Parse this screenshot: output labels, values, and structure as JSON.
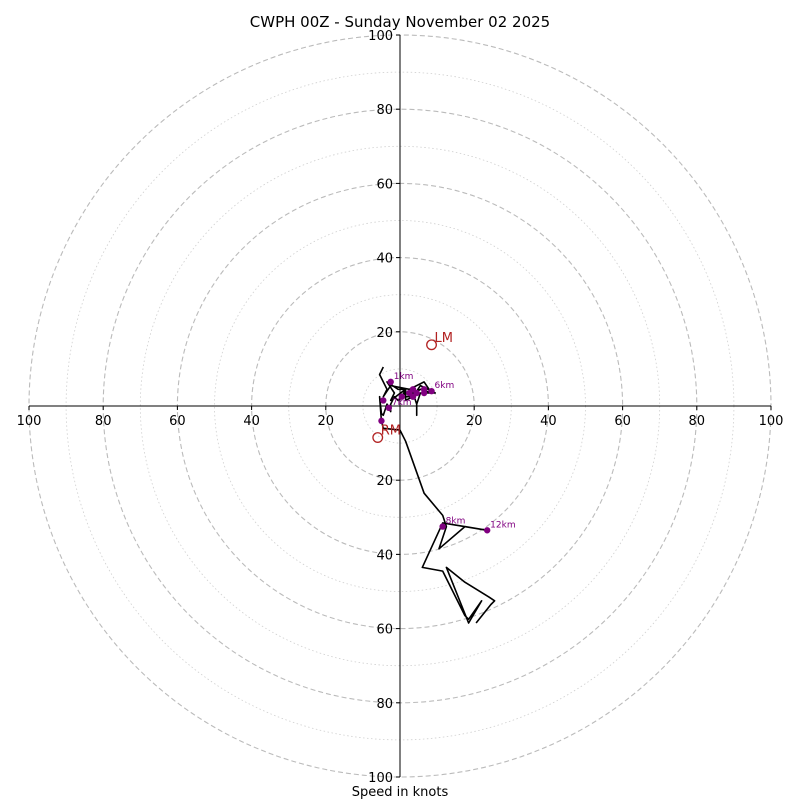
{
  "chart_data": {
    "type": "hodograph",
    "title": "CWPH 00Z - Sunday November 02 2025",
    "xlabel": "Speed in knots",
    "axis_max": 100,
    "ring_step_major": 20,
    "ring_step_minor": 10,
    "tick_labels": [
      "100",
      "80",
      "60",
      "40",
      "20",
      "20",
      "40",
      "60",
      "80",
      "100"
    ],
    "tick_values": [
      -100,
      -80,
      -60,
      -40,
      -20,
      20,
      40,
      60,
      80,
      100
    ],
    "hodograph_uv": [
      [
        -4.5,
        10.5
      ],
      [
        -5.5,
        8.5
      ],
      [
        -3.5,
        4.5
      ],
      [
        -4.5,
        2.5
      ],
      [
        -2.5,
        5.5
      ],
      [
        2.5,
        4.5
      ],
      [
        6.5,
        6.5
      ],
      [
        8.5,
        3.5
      ],
      [
        5.5,
        4.5
      ],
      [
        2.5,
        2.5
      ],
      [
        0.5,
        2.5
      ],
      [
        1.5,
        4.5
      ],
      [
        -0.5,
        4.5
      ],
      [
        -3.5,
        6.5
      ],
      [
        -1.5,
        3.5
      ],
      [
        -2.5,
        1.5
      ],
      [
        1.5,
        4.5
      ],
      [
        1.5,
        1.5
      ],
      [
        3.5,
        2.5
      ],
      [
        5.5,
        5.5
      ],
      [
        9.5,
        3.5
      ],
      [
        5.5,
        3.5
      ],
      [
        4.5,
        0.5
      ],
      [
        4.5,
        -2.5
      ],
      [
        4.5,
        0.5
      ],
      [
        3.5,
        3.5
      ],
      [
        1.5,
        3.5
      ],
      [
        -0.5,
        1.5
      ],
      [
        -1.5,
        2.5
      ],
      [
        -2.5,
        0.5
      ],
      [
        -2.5,
        -1.5
      ],
      [
        -3.5,
        0.5
      ],
      [
        -4.5,
        -2.5
      ],
      [
        -5.0,
        -2.0
      ],
      [
        -5.5,
        2.5
      ],
      [
        -5.0,
        -4.0
      ],
      [
        -4.5,
        -6.0
      ],
      [
        0,
        -6.5
      ],
      [
        1.5,
        -9.5
      ],
      [
        6.5,
        -23.5
      ],
      [
        11.5,
        -29.5
      ],
      [
        12.5,
        -32.5
      ],
      [
        10.5,
        -38.5
      ],
      [
        17.5,
        -32.5
      ],
      [
        23.5,
        -33.5
      ],
      [
        11.5,
        -31.5
      ],
      [
        6.0,
        -43.5
      ],
      [
        11.5,
        -44.5
      ],
      [
        17.5,
        -56.5
      ],
      [
        18.5,
        -57.5
      ],
      [
        22.0,
        -52.5
      ],
      [
        18.5,
        -58.5
      ],
      [
        12.5,
        -43.5
      ],
      [
        17.5,
        -47.5
      ],
      [
        24.0,
        -51.5
      ],
      [
        25.5,
        -52.5
      ],
      [
        24.5,
        -53.5
      ],
      [
        20.5,
        -58.5
      ]
    ],
    "height_markers": [
      {
        "label": "1km",
        "u": -2.5,
        "v": 6.5
      },
      {
        "label": "",
        "u": -4.5,
        "v": 1.5
      },
      {
        "label": "7km",
        "u": -3.0,
        "v": -0.5
      },
      {
        "label": "",
        "u": -5.0,
        "v": -4.0
      },
      {
        "label": "",
        "u": 2.5,
        "v": 3.5
      },
      {
        "label": "",
        "u": 3.5,
        "v": 4.5
      },
      {
        "label": "",
        "u": 4.5,
        "v": 3.5
      },
      {
        "label": "",
        "u": 6.5,
        "v": 4.5
      },
      {
        "label": "6km",
        "u": 8.5,
        "v": 4.0
      },
      {
        "label": "",
        "u": 6.5,
        "v": 3.5
      },
      {
        "label": "",
        "u": 3.5,
        "v": 2.5
      },
      {
        "label": "",
        "u": 0.5,
        "v": 2.5
      },
      {
        "label": "8km",
        "u": 11.5,
        "v": -32.5
      },
      {
        "label": "12km",
        "u": 23.5,
        "v": -33.5
      }
    ],
    "storm_motion": [
      {
        "label": "LM",
        "u": 8.5,
        "v": 16.5
      },
      {
        "label": "RM",
        "u": -6.0,
        "v": -8.5
      }
    ],
    "colors": {
      "line": "#000000",
      "marker": "#800080",
      "storm": "#b22222",
      "ring": "#bbbbbb"
    }
  }
}
